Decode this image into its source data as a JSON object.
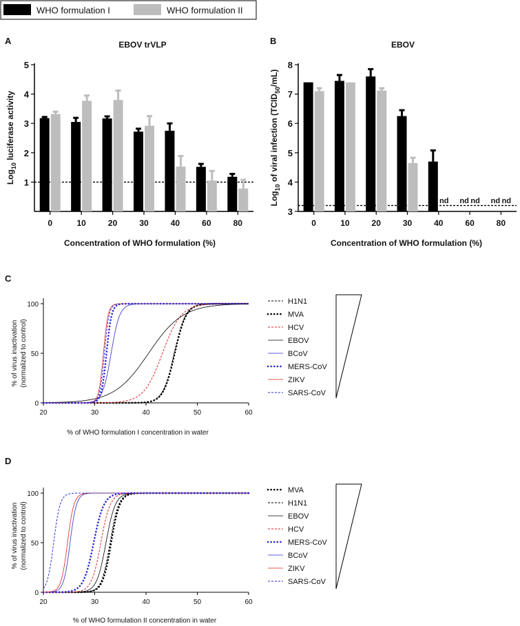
{
  "legend": {
    "items": [
      {
        "label": "WHO formulation I",
        "color": "#000000"
      },
      {
        "label": "WHO formulation II",
        "color": "#bdbdbd"
      }
    ]
  },
  "panel_letters": {
    "a": "A",
    "b": "B",
    "c": "C",
    "d": "D"
  },
  "chart_data": [
    {
      "panel": "A",
      "type": "bar",
      "title": "EBOV trVLP",
      "ylabel_prefix": "Log",
      "ylabel_sub": "10",
      "ylabel_suffix": " luciferase activity",
      "xlabel": "Concentration of WHO formulation (%)",
      "ylim": [
        0,
        5
      ],
      "yticks": [
        1,
        2,
        3,
        4,
        5
      ],
      "categories": [
        "0",
        "10",
        "20",
        "30",
        "40",
        "60",
        "80"
      ],
      "threshold": 1.0,
      "series": [
        {
          "name": "WHO formulation I",
          "color": "#000000",
          "values": [
            3.18,
            3.05,
            3.17,
            2.72,
            2.75,
            1.52,
            1.18
          ],
          "errors": [
            0.04,
            0.14,
            0.07,
            0.1,
            0.25,
            0.1,
            0.1
          ]
        },
        {
          "name": "WHO formulation II",
          "color": "#bdbdbd",
          "values": [
            3.32,
            3.77,
            3.8,
            2.92,
            1.53,
            1.05,
            0.78
          ],
          "errors": [
            0.08,
            0.18,
            0.32,
            0.33,
            0.36,
            0.33,
            0.3
          ]
        }
      ]
    },
    {
      "panel": "B",
      "type": "bar",
      "title": "EBOV",
      "ylabel_prefix": "Log",
      "ylabel_sub": "10",
      "ylabel_mid": " of viral infection (TCID",
      "ylabel_sub2": "50",
      "ylabel_suffix": "/mL)",
      "xlabel": "Concentration of WHO formulation (%)",
      "ylim": [
        3,
        8
      ],
      "yticks": [
        3,
        4,
        5,
        6,
        7,
        8
      ],
      "categories": [
        "0",
        "10",
        "20",
        "30",
        "40",
        "60",
        "80"
      ],
      "threshold": 3.2,
      "nd_label": "nd",
      "nd_points": [
        {
          "category_index": 4,
          "series_index": 1
        },
        {
          "category_index": 5,
          "series_index": 0
        },
        {
          "category_index": 5,
          "series_index": 1
        },
        {
          "category_index": 6,
          "series_index": 0
        },
        {
          "category_index": 6,
          "series_index": 1
        }
      ],
      "series": [
        {
          "name": "WHO formulation I",
          "color": "#000000",
          "values": [
            7.4,
            7.45,
            7.6,
            6.25,
            4.7,
            null,
            null
          ],
          "errors": [
            0.0,
            0.2,
            0.25,
            0.2,
            0.38,
            null,
            null
          ]
        },
        {
          "name": "WHO formulation II",
          "color": "#bdbdbd",
          "values": [
            7.1,
            7.4,
            7.12,
            4.65,
            null,
            null,
            null
          ],
          "errors": [
            0.1,
            0.0,
            0.08,
            0.18,
            null,
            null,
            null
          ]
        }
      ]
    },
    {
      "panel": "C",
      "type": "line",
      "ylabel_line1": "% of virus inactivation",
      "ylabel_line2": "(normalized to control)",
      "xlabel": "% of WHO formulation I concentration in water",
      "xlim": [
        20,
        60
      ],
      "ylim": [
        0,
        100
      ],
      "xticks": [
        20,
        30,
        40,
        50,
        60
      ],
      "yticks": [
        0,
        50,
        100
      ],
      "series": [
        {
          "name": "H1N1",
          "color": "#000000",
          "dash": "short",
          "width": 1,
          "ec50": 45.5,
          "hill": 0.9
        },
        {
          "name": "MVA",
          "color": "#000000",
          "dash": "dot",
          "width": 2.6,
          "ec50": 45.6,
          "hill": 0.9
        },
        {
          "name": "HCV",
          "color": "#e02020",
          "dash": "short",
          "width": 1,
          "ec50": 43.2,
          "hill": 0.55
        },
        {
          "name": "EBOV",
          "color": "#000000",
          "dash": "solid",
          "width": 0.8,
          "ec50": 40.5,
          "hill": 0.3
        },
        {
          "name": "BCoV",
          "color": "#2a2ad0",
          "dash": "solid",
          "width": 0.8,
          "ec50": 33.2,
          "hill": 1.2
        },
        {
          "name": "MERS-CoV",
          "color": "#2a2ad0",
          "dash": "dot",
          "width": 2.6,
          "ec50": 32.3,
          "hill": 2.0
        },
        {
          "name": "ZIKV",
          "color": "#e02020",
          "dash": "solid",
          "width": 0.8,
          "ec50": 31.7,
          "hill": 2.2
        },
        {
          "name": "SARS-CoV",
          "color": "#2a2ad0",
          "dash": "short",
          "width": 1,
          "ec50": 31.9,
          "hill": 2.2
        }
      ]
    },
    {
      "panel": "D",
      "type": "line",
      "ylabel_line1": "% of virus inactivation",
      "ylabel_line2": "(normalized to control)",
      "xlabel": "% of WHO formulation II concentration in water",
      "xlim": [
        20,
        60
      ],
      "ylim": [
        0,
        100
      ],
      "xticks": [
        20,
        30,
        40,
        50,
        60
      ],
      "yticks": [
        0,
        50,
        100
      ],
      "series": [
        {
          "name": "MVA",
          "color": "#000000",
          "dash": "dot",
          "width": 2.6,
          "ec50": 33.2,
          "hill": 1.2
        },
        {
          "name": "H1N1",
          "color": "#000000",
          "dash": "short",
          "width": 1,
          "ec50": 33.0,
          "hill": 1.2
        },
        {
          "name": "EBOV",
          "color": "#000000",
          "dash": "solid",
          "width": 0.8,
          "ec50": 32.2,
          "hill": 1.1
        },
        {
          "name": "HCV",
          "color": "#e02020",
          "dash": "short",
          "width": 1,
          "ec50": 31.2,
          "hill": 1.1
        },
        {
          "name": "MERS-CoV",
          "color": "#2a2ad0",
          "dash": "dot",
          "width": 2.6,
          "ec50": 29.8,
          "hill": 1.0
        },
        {
          "name": "BCoV",
          "color": "#2a2ad0",
          "dash": "solid",
          "width": 0.8,
          "ec50": 25.2,
          "hill": 1.6
        },
        {
          "name": "ZIKV",
          "color": "#e02020",
          "dash": "solid",
          "width": 0.8,
          "ec50": 24.7,
          "hill": 1.6
        },
        {
          "name": "SARS-CoV",
          "color": "#2a2ad0",
          "dash": "short",
          "width": 1,
          "ec50": 22.0,
          "hill": 1.6
        }
      ]
    }
  ]
}
